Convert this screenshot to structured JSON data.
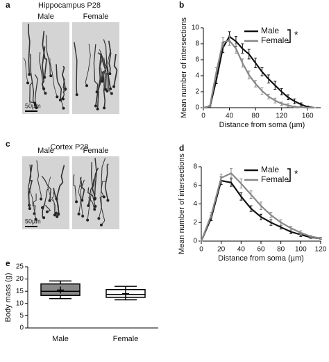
{
  "figure": {
    "panels": [
      "a",
      "b",
      "c",
      "d",
      "e"
    ]
  },
  "image_panels": [
    {
      "title": "Hippocampus P28",
      "labels": [
        "Male",
        "Female"
      ],
      "scale": "50µm"
    },
    {
      "title": "Cortex P28",
      "labels": [
        "Male",
        "Female"
      ],
      "scale": "50µm"
    }
  ],
  "chart_data": [
    {
      "type": "line",
      "xlabel": "Distance from soma (µm)",
      "ylabel": "Mean number of intersections",
      "annotation": "*",
      "x": [
        0,
        10,
        20,
        30,
        40,
        50,
        60,
        70,
        80,
        90,
        100,
        110,
        120,
        130,
        140,
        150,
        160,
        170
      ],
      "xlim": [
        0,
        180
      ],
      "xticks": [
        0,
        40,
        80,
        120,
        160
      ],
      "ylim": [
        0,
        10
      ],
      "yticks": [
        0,
        2,
        4,
        6,
        8,
        10
      ],
      "series": [
        {
          "name": "Male",
          "color": "#111111",
          "values": [
            0,
            0.1,
            3.5,
            7.5,
            8.9,
            8.3,
            7.4,
            6.7,
            5.6,
            4.5,
            3.6,
            2.8,
            2.0,
            1.3,
            0.8,
            0.4,
            0.1,
            0
          ],
          "errors": [
            0,
            0.1,
            0.5,
            0.6,
            0.6,
            0.6,
            0.6,
            0.6,
            0.6,
            0.5,
            0.5,
            0.5,
            0.4,
            0.3,
            0.3,
            0.2,
            0.1,
            0
          ]
        },
        {
          "name": "Female",
          "color": "#888888",
          "values": [
            0,
            0.2,
            4.5,
            8.2,
            8.4,
            7.4,
            5.6,
            4.1,
            3.0,
            2.1,
            1.4,
            0.9,
            0.5,
            0.3,
            0.1,
            0.05,
            0,
            0
          ],
          "errors": [
            0,
            0.1,
            0.5,
            0.6,
            0.6,
            0.6,
            0.5,
            0.5,
            0.4,
            0.4,
            0.3,
            0.3,
            0.2,
            0.2,
            0.1,
            0.05,
            0,
            0
          ]
        }
      ]
    },
    {
      "type": "line",
      "xlabel": "Distance from soma (µm)",
      "ylabel": "Mean number of intersections",
      "annotation": "*",
      "x": [
        0,
        10,
        20,
        30,
        40,
        50,
        60,
        70,
        80,
        90,
        100,
        110,
        120
      ],
      "xlim": [
        0,
        120
      ],
      "xticks": [
        0,
        20,
        40,
        60,
        80,
        100,
        120
      ],
      "ylim": [
        0,
        8
      ],
      "yticks": [
        0,
        2,
        4,
        6,
        8
      ],
      "series": [
        {
          "name": "Male",
          "color": "#111111",
          "values": [
            0,
            2.5,
            6.5,
            6.3,
            4.8,
            3.5,
            2.6,
            2.0,
            1.5,
            1.0,
            0.7,
            0.4,
            0.3
          ],
          "errors": [
            0,
            0.3,
            0.4,
            0.4,
            0.4,
            0.3,
            0.3,
            0.3,
            0.2,
            0.2,
            0.2,
            0.1,
            0.1
          ]
        },
        {
          "name": "Female",
          "color": "#888888",
          "values": [
            0,
            2.8,
            6.8,
            7.3,
            6.2,
            5.0,
            3.8,
            2.8,
            2.0,
            1.4,
            0.9,
            0.5,
            0.3
          ],
          "errors": [
            0,
            0.3,
            0.4,
            0.5,
            0.5,
            0.4,
            0.4,
            0.3,
            0.3,
            0.2,
            0.2,
            0.1,
            0.1
          ]
        }
      ]
    },
    {
      "type": "box",
      "ylabel": "Body mass (g)",
      "ylim": [
        0,
        25
      ],
      "yticks": [
        0,
        5,
        10,
        15,
        20,
        25
      ],
      "boxes": [
        {
          "name": "Male",
          "color": "#888888",
          "min": 12,
          "q1": 13.3,
          "median": 15,
          "q3": 18,
          "max": 19.2,
          "mean": 15.5
        },
        {
          "name": "Female",
          "color": "#ffffff",
          "min": 11.5,
          "q1": 12.5,
          "median": 13.7,
          "q3": 15.7,
          "max": 17,
          "mean": 14
        }
      ]
    }
  ]
}
